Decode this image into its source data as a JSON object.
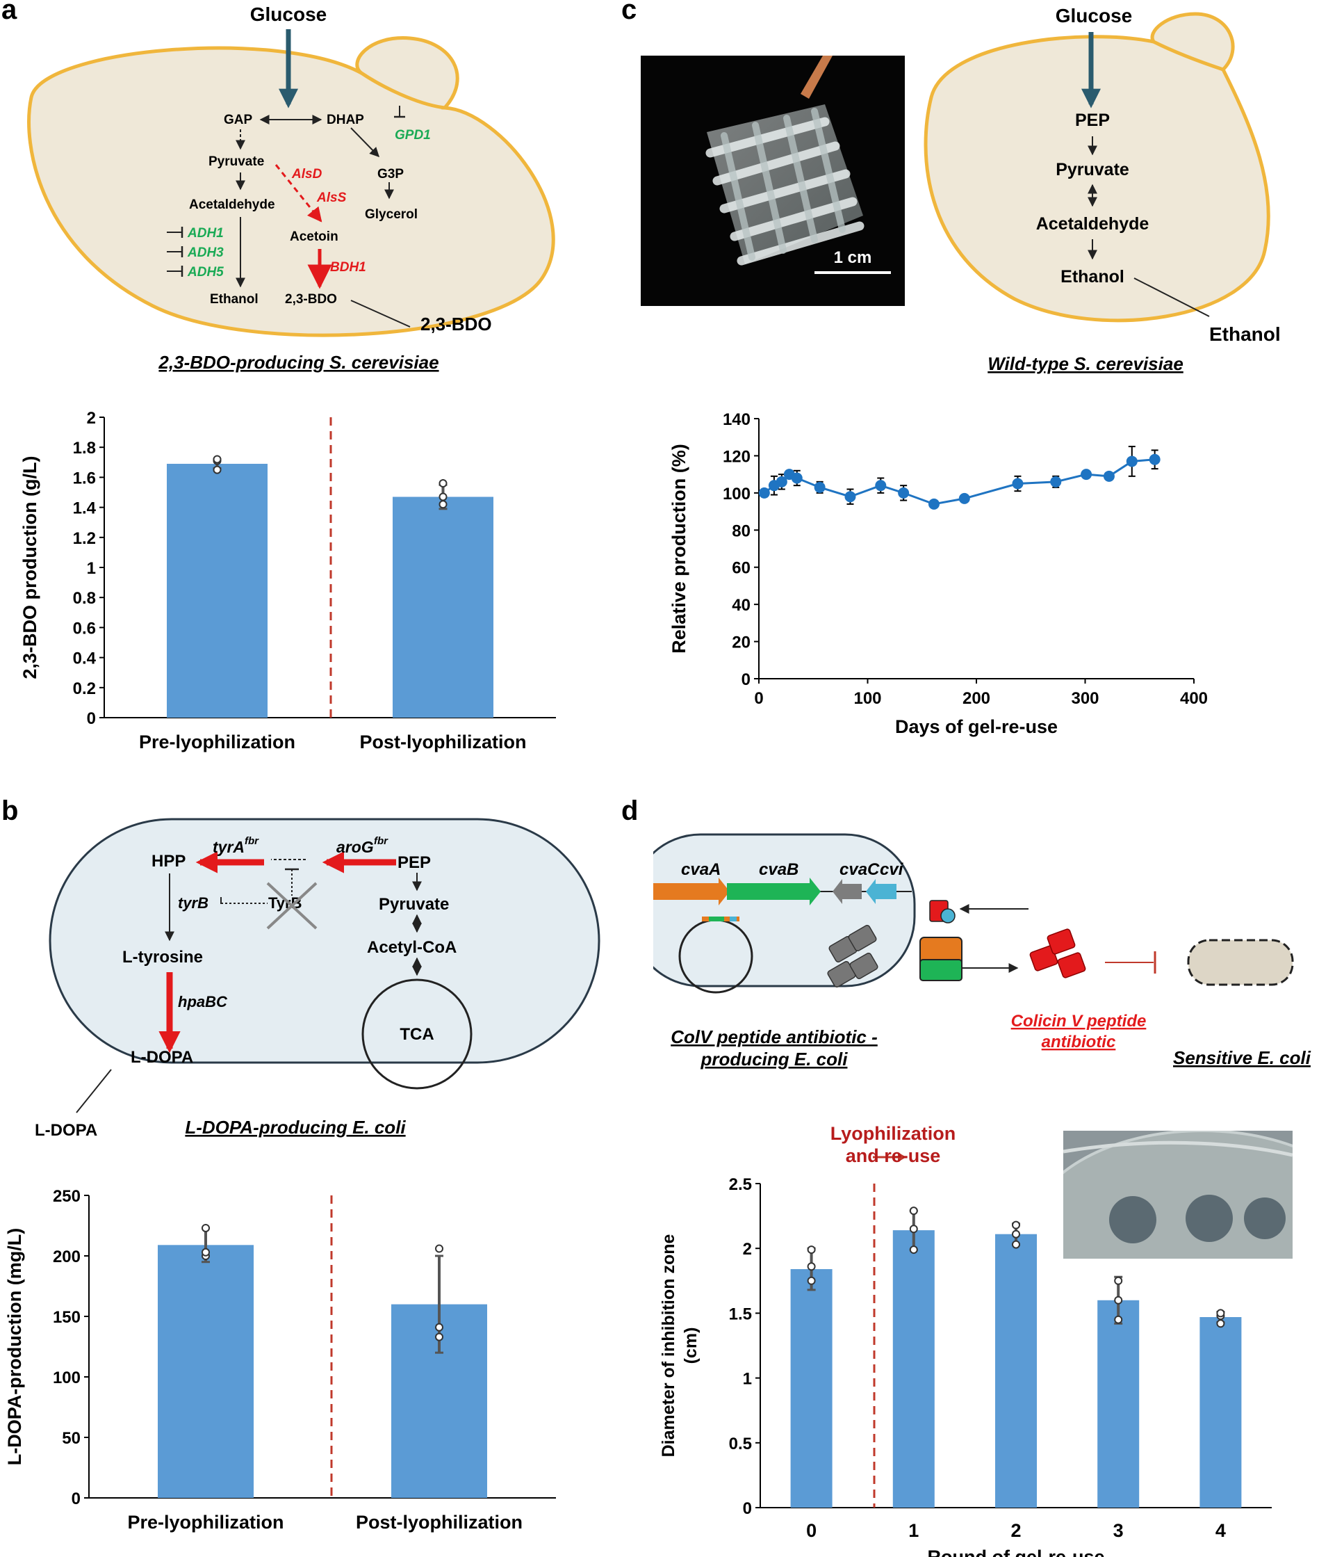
{
  "panels": {
    "a": {
      "letter": "a",
      "diagram": {
        "glucose": "Glucose",
        "gap": "GAP",
        "dhap": "DHAP",
        "gpd1": "GPD1",
        "pyruvate": "Pyruvate",
        "alsd": "AlsD",
        "alss": "AlsS",
        "g3p": "G3P",
        "acetaldehyde": "Acetaldehyde",
        "glycerol": "Glycerol",
        "acetoin": "Acetoin",
        "adh1": "ADH1",
        "adh3": "ADH3",
        "adh5": "ADH5",
        "bdh1": "BDH1",
        "ethanol": "Ethanol",
        "bdo_in": "2,3-BDO",
        "bdo_out": "2,3-BDO",
        "caption": "2,3-BDO-producing S. cerevisiae"
      }
    },
    "b": {
      "letter": "b",
      "diagram": {
        "hpp": "HPP",
        "tyra": "tyrA",
        "tyra_sup": "fbr",
        "arog": "aroG",
        "arog_sup": "fbr",
        "pep": "PEP",
        "tyrb_gene": "tyrB",
        "tyrb_prot": "TyrB",
        "pyruvate": "Pyruvate",
        "acetylcoa": "Acetyl-CoA",
        "ltyrosine": "L-tyrosine",
        "hpabc": "hpaBC",
        "tca": "TCA",
        "ldopa_in": "L-DOPA",
        "ldopa_out": "L-DOPA",
        "caption": "L-DOPA-producing E. coli"
      }
    },
    "c": {
      "letter": "c",
      "scale_bar": "1 cm",
      "diagram": {
        "glucose": "Glucose",
        "pep": "PEP",
        "pyruvate": "Pyruvate",
        "acetaldehyde": "Acetaldehyde",
        "ethanol_in": "Ethanol",
        "ethanol_out": "Ethanol",
        "caption": "Wild-type S. cerevisiae"
      }
    },
    "d": {
      "letter": "d",
      "diagram": {
        "cvaa": "cvaA",
        "cvab": "cvaB",
        "cvac": "cvaC",
        "cvi": "cvi",
        "colicin_line1": "Colicin V peptide",
        "colicin_line2": "antibiotic",
        "caption_line1": "ColV peptide antibiotic -",
        "caption_line2": "producing E. coli",
        "sensitive": "Sensitive E. coli"
      },
      "annotation_line1": "Lyophilization",
      "annotation_line2": "and re-use"
    }
  },
  "colors": {
    "bar": "#5b9bd5",
    "line": "#1f74c2",
    "cell_fill": "#efe8d8",
    "cell_stroke": "#f0b63c",
    "ecoli_fill": "#e4edf2",
    "red": "#e31a1c",
    "green": "#1aaa55",
    "dashed": "#c0392b",
    "teal_arrow": "#2a5b6e"
  },
  "chart_data": [
    {
      "id": "a",
      "type": "bar",
      "categories": [
        "Pre-lyophilization",
        "Post-lyophilization"
      ],
      "values": [
        1.69,
        1.47
      ],
      "errors": [
        0.03,
        0.08
      ],
      "points": [
        [
          1.65,
          1.71,
          1.72
        ],
        [
          1.42,
          1.47,
          1.56
        ]
      ],
      "ylabel": "2,3-BDO production (g/L)",
      "xlabel": "",
      "ylim": [
        0,
        2
      ],
      "yticks": [
        0,
        0.2,
        0.4,
        0.6,
        0.8,
        1,
        1.2,
        1.4,
        1.6,
        1.8,
        2
      ],
      "ytick_labels": [
        "0",
        "0.2",
        "0.4",
        "0.6",
        "0.8",
        "1",
        "1.2",
        "1.4",
        "1.6",
        "1.8",
        "2"
      ],
      "separator_after": 0
    },
    {
      "id": "b",
      "type": "bar",
      "categories": [
        "Pre-lyophilization",
        "Post-lyophilization"
      ],
      "values": [
        209,
        160
      ],
      "errors": [
        14,
        40
      ],
      "points": [
        [
          200,
          203,
          223
        ],
        [
          133,
          141,
          206
        ]
      ],
      "ylabel": "L-DOPA-production (mg/L)",
      "xlabel": "",
      "ylim": [
        0,
        250
      ],
      "yticks": [
        0,
        50,
        100,
        150,
        200,
        250
      ],
      "ytick_labels": [
        "0",
        "50",
        "100",
        "150",
        "200",
        "250"
      ],
      "separator_after": 0
    },
    {
      "id": "c",
      "type": "line",
      "x": [
        5,
        14,
        21,
        28,
        35,
        56,
        84,
        112,
        133,
        161,
        189,
        238,
        273,
        301,
        322,
        343,
        364
      ],
      "y": [
        100,
        104,
        106,
        110,
        108,
        103,
        98,
        104,
        100,
        94,
        97,
        105,
        106,
        110,
        109,
        117,
        118
      ],
      "errors": [
        2,
        5,
        4,
        2,
        4,
        3,
        4,
        4,
        4,
        1,
        1,
        4,
        3,
        1,
        2,
        8,
        5
      ],
      "xlabel": "Days of gel-re-use",
      "ylabel": "Relative production (%)",
      "xlim": [
        0,
        400
      ],
      "ylim": [
        0,
        140
      ],
      "xticks": [
        0,
        100,
        200,
        300,
        400
      ],
      "xtick_labels": [
        "0",
        "100",
        "200",
        "300",
        "400"
      ],
      "yticks": [
        0,
        20,
        40,
        60,
        80,
        100,
        120,
        140
      ],
      "ytick_labels": [
        "0",
        "20",
        "40",
        "60",
        "80",
        "100",
        "120",
        "140"
      ]
    },
    {
      "id": "d",
      "type": "bar",
      "categories": [
        "0",
        "1",
        "2",
        "3",
        "4"
      ],
      "values": [
        1.84,
        2.14,
        2.11,
        1.6,
        1.47
      ],
      "errors": [
        0.16,
        0.15,
        0.08,
        0.18,
        0.04
      ],
      "points": [
        [
          1.75,
          1.86,
          1.99
        ],
        [
          1.99,
          2.15,
          2.29
        ],
        [
          2.03,
          2.11,
          2.18
        ],
        [
          1.45,
          1.6,
          1.75
        ],
        [
          1.42,
          1.48,
          1.5
        ]
      ],
      "xlabel": "Round of gel-re-use",
      "ylabel": "Diameter of inhibition zone (cm)",
      "ylim": [
        0,
        2.5
      ],
      "yticks": [
        0,
        0.5,
        1,
        1.5,
        2,
        2.5
      ],
      "ytick_labels": [
        "0",
        "0.5",
        "1",
        "1.5",
        "2",
        "2.5"
      ],
      "separator_after": 0
    }
  ]
}
